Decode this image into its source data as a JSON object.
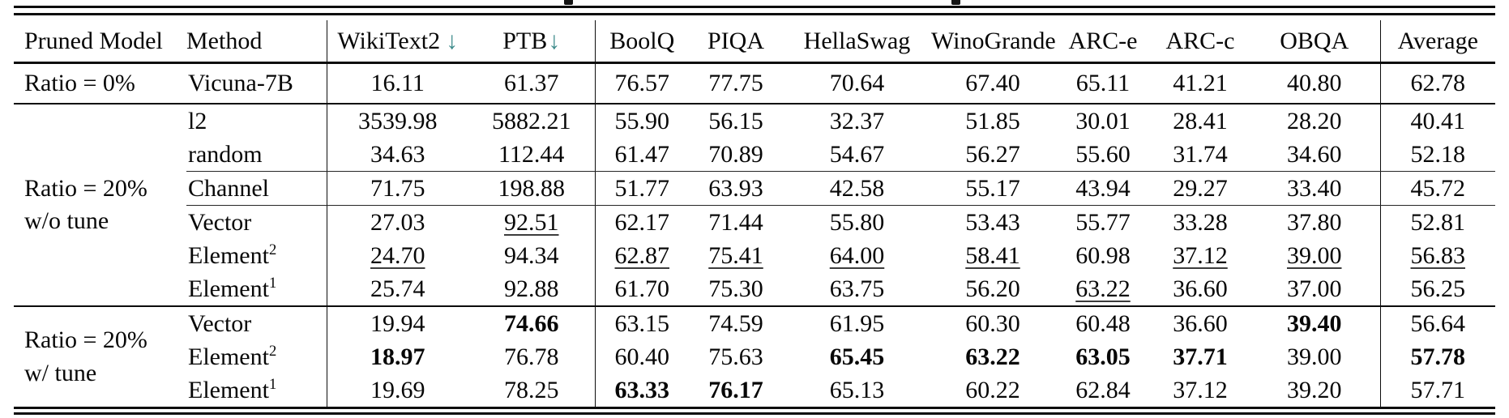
{
  "accent_colors": {
    "down_arrow": "#3e8b8b",
    "rule": "#0c0c0c"
  },
  "table": {
    "columns": [
      {
        "label": "Pruned Model"
      },
      {
        "label": "Method"
      },
      {
        "label": "WikiText2",
        "arrow": "↓"
      },
      {
        "label": "PTB",
        "arrow": "↓"
      },
      {
        "label": "BoolQ"
      },
      {
        "label": "PIQA"
      },
      {
        "label": "HellaSwag"
      },
      {
        "label": "WinoGrande"
      },
      {
        "label": "ARC-e"
      },
      {
        "label": "ARC-c"
      },
      {
        "label": "OBQA"
      },
      {
        "label": "Average"
      }
    ],
    "groups": [
      {
        "label_lines": [
          "Ratio = 0%"
        ],
        "rows": [
          {
            "method": "Vicuna-7B",
            "cells": [
              {
                "v": "16.11"
              },
              {
                "v": "61.37"
              },
              {
                "v": "76.57"
              },
              {
                "v": "77.75"
              },
              {
                "v": "70.64"
              },
              {
                "v": "67.40"
              },
              {
                "v": "65.11"
              },
              {
                "v": "41.21"
              },
              {
                "v": "40.80"
              },
              {
                "v": "62.78"
              }
            ]
          }
        ]
      },
      {
        "label_lines": [
          "Ratio = 20%",
          "w/o tune"
        ],
        "rows": [
          {
            "method": "l2",
            "cells": [
              {
                "v": "3539.98"
              },
              {
                "v": "5882.21"
              },
              {
                "v": "55.90"
              },
              {
                "v": "56.15"
              },
              {
                "v": "32.37"
              },
              {
                "v": "51.85"
              },
              {
                "v": "30.01"
              },
              {
                "v": "28.41"
              },
              {
                "v": "28.20"
              },
              {
                "v": "40.41"
              }
            ]
          },
          {
            "method": "random",
            "rule_after": true,
            "cells": [
              {
                "v": "34.63"
              },
              {
                "v": "112.44"
              },
              {
                "v": "61.47"
              },
              {
                "v": "70.89"
              },
              {
                "v": "54.67"
              },
              {
                "v": "56.27"
              },
              {
                "v": "55.60"
              },
              {
                "v": "31.74"
              },
              {
                "v": "34.60"
              },
              {
                "v": "52.18"
              }
            ]
          },
          {
            "method": "Channel",
            "rule_after": true,
            "cells": [
              {
                "v": "71.75"
              },
              {
                "v": "198.88"
              },
              {
                "v": "51.77"
              },
              {
                "v": "63.93"
              },
              {
                "v": "42.58"
              },
              {
                "v": "55.17"
              },
              {
                "v": "43.94"
              },
              {
                "v": "29.27"
              },
              {
                "v": "33.40"
              },
              {
                "v": "45.72"
              }
            ]
          },
          {
            "method": "Vector",
            "cells": [
              {
                "v": "27.03"
              },
              {
                "v": "92.51",
                "em": "u"
              },
              {
                "v": "62.17"
              },
              {
                "v": "71.44"
              },
              {
                "v": "55.80"
              },
              {
                "v": "53.43"
              },
              {
                "v": "55.77"
              },
              {
                "v": "33.28"
              },
              {
                "v": "37.80"
              },
              {
                "v": "52.81"
              }
            ]
          },
          {
            "method": "Element",
            "sup": "2",
            "cells": [
              {
                "v": "24.70",
                "em": "u"
              },
              {
                "v": "94.34"
              },
              {
                "v": "62.87",
                "em": "u"
              },
              {
                "v": "75.41",
                "em": "u"
              },
              {
                "v": "64.00",
                "em": "u"
              },
              {
                "v": "58.41",
                "em": "u"
              },
              {
                "v": "60.98"
              },
              {
                "v": "37.12",
                "em": "u"
              },
              {
                "v": "39.00",
                "em": "u"
              },
              {
                "v": "56.83",
                "em": "u"
              }
            ]
          },
          {
            "method": "Element",
            "sup": "1",
            "cells": [
              {
                "v": "25.74"
              },
              {
                "v": "92.88"
              },
              {
                "v": "61.70"
              },
              {
                "v": "75.30"
              },
              {
                "v": "63.75"
              },
              {
                "v": "56.20"
              },
              {
                "v": "63.22",
                "em": "u"
              },
              {
                "v": "36.60"
              },
              {
                "v": "37.00"
              },
              {
                "v": "56.25"
              }
            ]
          }
        ]
      },
      {
        "label_lines": [
          "Ratio = 20%",
          "w/ tune"
        ],
        "rows": [
          {
            "method": "Vector",
            "cells": [
              {
                "v": "19.94"
              },
              {
                "v": "74.66",
                "em": "b"
              },
              {
                "v": "63.15"
              },
              {
                "v": "74.59"
              },
              {
                "v": "61.95"
              },
              {
                "v": "60.30"
              },
              {
                "v": "60.48"
              },
              {
                "v": "36.60"
              },
              {
                "v": "39.40",
                "em": "b"
              },
              {
                "v": "56.64"
              }
            ]
          },
          {
            "method": "Element",
            "sup": "2",
            "cells": [
              {
                "v": "18.97",
                "em": "b"
              },
              {
                "v": "76.78"
              },
              {
                "v": "60.40"
              },
              {
                "v": "75.63"
              },
              {
                "v": "65.45",
                "em": "b"
              },
              {
                "v": "63.22",
                "em": "b"
              },
              {
                "v": "63.05",
                "em": "b"
              },
              {
                "v": "37.71",
                "em": "b"
              },
              {
                "v": "39.00"
              },
              {
                "v": "57.78",
                "em": "b"
              }
            ]
          },
          {
            "method": "Element",
            "sup": "1",
            "cells": [
              {
                "v": "19.69"
              },
              {
                "v": "78.25"
              },
              {
                "v": "63.33",
                "em": "b"
              },
              {
                "v": "76.17",
                "em": "b"
              },
              {
                "v": "65.13"
              },
              {
                "v": "60.22"
              },
              {
                "v": "62.84"
              },
              {
                "v": "37.12"
              },
              {
                "v": "39.20"
              },
              {
                "v": "57.71"
              }
            ]
          }
        ]
      }
    ]
  }
}
